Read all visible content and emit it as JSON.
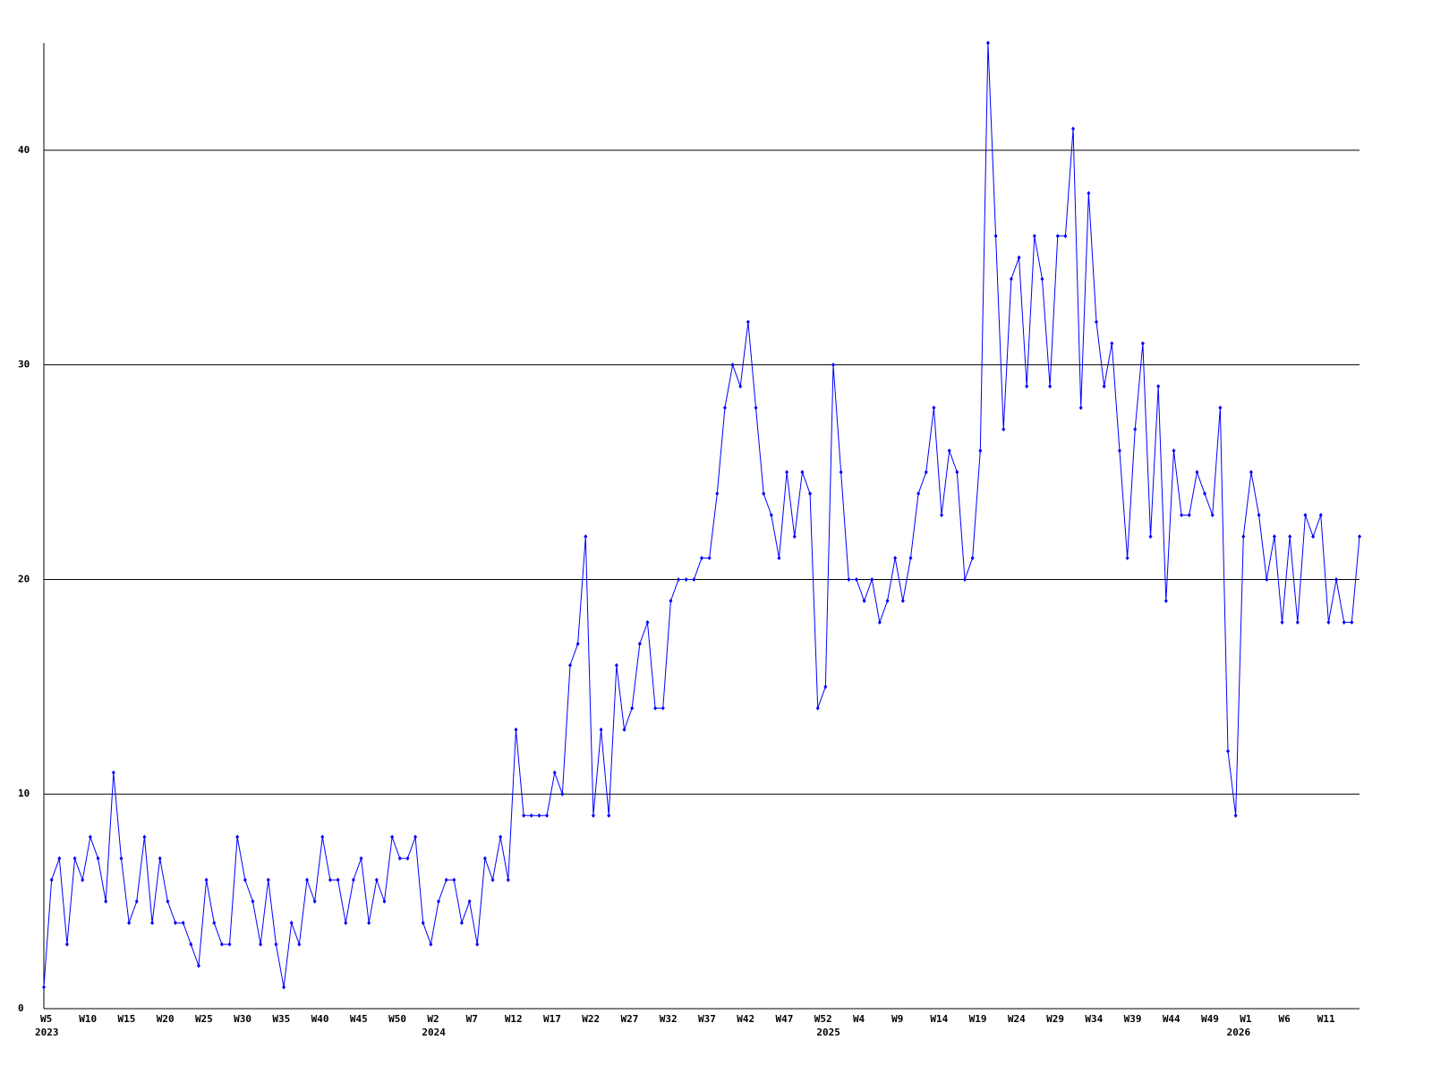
{
  "chart_data": {
    "type": "line",
    "categories": [
      "W5",
      null,
      null,
      null,
      null,
      "W10",
      null,
      null,
      null,
      null,
      "W15",
      null,
      null,
      null,
      null,
      "W20",
      null,
      null,
      null,
      null,
      "W25",
      null,
      null,
      null,
      null,
      "W30",
      null,
      null,
      null,
      null,
      "W35",
      null,
      null,
      null,
      null,
      "W40",
      null,
      null,
      null,
      null,
      "W45",
      null,
      null,
      null,
      null,
      "W50",
      null,
      null,
      null,
      null,
      "W2",
      null,
      null,
      null,
      null,
      "W7",
      null,
      null,
      null,
      null,
      "W12",
      null,
      null,
      null,
      null,
      "W17",
      null,
      null,
      null,
      null,
      "W22",
      null,
      null,
      null,
      null,
      "W27",
      null,
      null,
      null,
      null,
      "W32",
      null,
      null,
      null,
      null,
      "W37",
      null,
      null,
      null,
      null,
      "W42",
      null,
      null,
      null,
      null,
      "W47",
      null,
      null,
      null,
      null,
      "W52",
      null,
      null,
      null,
      null,
      "W4",
      null,
      null,
      null,
      null,
      "W9",
      null,
      null,
      null,
      null,
      "W14",
      null,
      null,
      null,
      null,
      "W19",
      null,
      null,
      null,
      null,
      "W24",
      null,
      null,
      null,
      null,
      "W29",
      null,
      null,
      null,
      null,
      "W34",
      null,
      null,
      null,
      null,
      "W39",
      null,
      null,
      null,
      null,
      "W44",
      null,
      null,
      null,
      null,
      "W49",
      null,
      null,
      null,
      null,
      "W1",
      null,
      null,
      null,
      null,
      "W6",
      null,
      null,
      null,
      null,
      "W11",
      null,
      null,
      null,
      null,
      null
    ],
    "x_years": [
      "2023",
      null,
      null,
      null,
      null,
      null,
      null,
      null,
      null,
      null,
      null,
      null,
      null,
      null,
      null,
      null,
      null,
      null,
      null,
      null,
      null,
      null,
      null,
      null,
      null,
      null,
      null,
      null,
      null,
      null,
      null,
      null,
      null,
      null,
      null,
      null,
      null,
      null,
      null,
      null,
      null,
      null,
      null,
      null,
      null,
      null,
      null,
      null,
      null,
      null,
      "2024",
      null,
      null,
      null,
      null,
      null,
      null,
      null,
      null,
      null,
      null,
      null,
      null,
      null,
      null,
      null,
      null,
      null,
      null,
      null,
      null,
      null,
      null,
      null,
      null,
      null,
      null,
      null,
      null,
      null,
      null,
      null,
      null,
      null,
      null,
      null,
      null,
      null,
      null,
      null,
      null,
      null,
      null,
      null,
      null,
      null,
      null,
      null,
      null,
      null,
      null,
      "2025",
      null,
      null,
      null,
      null,
      null,
      null,
      null,
      null,
      null,
      null,
      null,
      null,
      null,
      null,
      null,
      null,
      null,
      null,
      null,
      null,
      null,
      null,
      null,
      null,
      null,
      null,
      null,
      null,
      null,
      null,
      null,
      null,
      null,
      null,
      null,
      null,
      null,
      null,
      null,
      null,
      null,
      null,
      null,
      null,
      null,
      null,
      null,
      null,
      null,
      null,
      null,
      null,
      "2026",
      null,
      null,
      null,
      null,
      null,
      null,
      null,
      null,
      null,
      null,
      null,
      null,
      null,
      null,
      null
    ],
    "series": [
      {
        "color": "#0000ff",
        "values": [
          1,
          6,
          7,
          3,
          7,
          6,
          8,
          7,
          5,
          11,
          7,
          4,
          5,
          8,
          4,
          7,
          5,
          4,
          4,
          3,
          2,
          6,
          4,
          3,
          3,
          8,
          6,
          5,
          3,
          6,
          3,
          1,
          4,
          3,
          6,
          5,
          8,
          6,
          6,
          4,
          6,
          7,
          4,
          6,
          5,
          8,
          7,
          7,
          8,
          4,
          3,
          5,
          6,
          6,
          4,
          5,
          3,
          7,
          6,
          8,
          6,
          13,
          9,
          9,
          9,
          9,
          11,
          10,
          16,
          17,
          22,
          9,
          13,
          9,
          16,
          13,
          14,
          17,
          18,
          14,
          14,
          19,
          20,
          20,
          20,
          21,
          21,
          24,
          28,
          30,
          29,
          32,
          28,
          24,
          23,
          21,
          25,
          22,
          25,
          24,
          14,
          15,
          30,
          25,
          20,
          20,
          19,
          20,
          18,
          19,
          21,
          19,
          21,
          24,
          25,
          28,
          23,
          26,
          25,
          20,
          21,
          26,
          45,
          36,
          27,
          34,
          35,
          29,
          36,
          34,
          29,
          36,
          36,
          41,
          28,
          38,
          32,
          29,
          31,
          26,
          21,
          27,
          31,
          22,
          29,
          19,
          26,
          23,
          23,
          25,
          24,
          23,
          28,
          12,
          9,
          22,
          25,
          23,
          20,
          22,
          18,
          22,
          18,
          23,
          22,
          23,
          18,
          20,
          18,
          18,
          22
        ]
      }
    ],
    "ylim": [
      0,
      45
    ],
    "yticks": [
      0,
      10,
      20,
      30,
      40
    ],
    "grid": true
  }
}
